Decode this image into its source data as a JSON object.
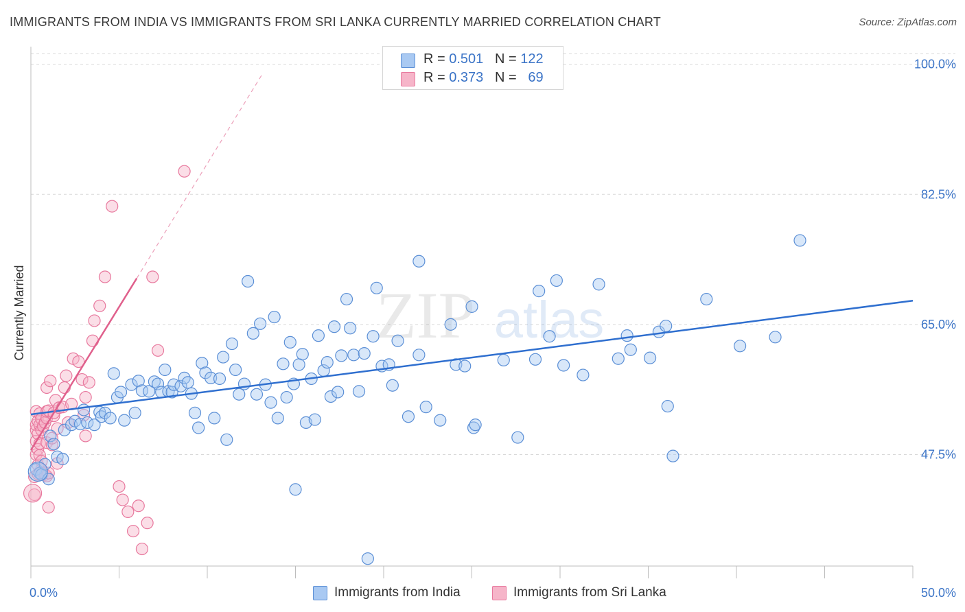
{
  "header": {
    "title": "IMMIGRANTS FROM INDIA VS IMMIGRANTS FROM SRI LANKA CURRENTLY MARRIED CORRELATION CHART",
    "source": "Source: ZipAtlas.com"
  },
  "legend": {
    "india": {
      "r_label": "R =",
      "r_value": "0.501",
      "n_label": "N =",
      "n_value": "122"
    },
    "srilanka": {
      "r_label": "R =",
      "r_value": "0.373",
      "n_label": "N =",
      "n_value": "69"
    }
  },
  "watermark": {
    "zip": "ZIP",
    "atlas": "atlas"
  },
  "colors": {
    "india_fill": "#a9c9f2",
    "india_stroke": "#5b8fd6",
    "india_line": "#2f6fcf",
    "srilanka_fill": "#f6b5c9",
    "srilanka_stroke": "#e8799e",
    "srilanka_line": "#e0608c",
    "axis_label": "#3b74c7",
    "grid": "#d9d9d9"
  },
  "chart_data": {
    "type": "scatter",
    "title": "IMMIGRANTS FROM INDIA VS IMMIGRANTS FROM SRI LANKA CURRENTLY MARRIED CORRELATION CHART",
    "xlabel": "",
    "ylabel": "Currently Married",
    "xlim": [
      0,
      50
    ],
    "ylim": [
      32.5,
      102
    ],
    "x_tick_labels": [
      "0.0%",
      "50.0%"
    ],
    "y_ticks": [
      47.5,
      65.0,
      82.5,
      100.0
    ],
    "y_tick_labels": [
      "47.5%",
      "65.0%",
      "82.5%",
      "100.0%"
    ],
    "grid": "horizontal dashed",
    "legend_position": "top-center",
    "series": [
      {
        "name": "Immigrants from India",
        "r": 0.501,
        "n": 122,
        "trend": {
          "x": [
            0,
            50
          ],
          "y": [
            52.9,
            68.2
          ]
        },
        "points": [
          [
            0.3,
            45.5
          ],
          [
            0.5,
            45.0
          ],
          [
            0.6,
            44.8
          ],
          [
            0.8,
            46.2
          ],
          [
            1.0,
            44.2
          ],
          [
            1.1,
            50.0
          ],
          [
            1.3,
            48.9
          ],
          [
            1.5,
            47.2
          ],
          [
            1.8,
            46.9
          ],
          [
            1.9,
            50.8
          ],
          [
            2.3,
            51.5
          ],
          [
            2.5,
            52.0
          ],
          [
            2.8,
            51.6
          ],
          [
            3.0,
            53.5
          ],
          [
            3.2,
            51.8
          ],
          [
            3.6,
            51.5
          ],
          [
            3.9,
            53.2
          ],
          [
            4.0,
            52.6
          ],
          [
            4.2,
            53.1
          ],
          [
            4.5,
            52.4
          ],
          [
            4.7,
            58.4
          ],
          [
            4.9,
            55.2
          ],
          [
            5.1,
            55.9
          ],
          [
            5.3,
            52.1
          ],
          [
            5.7,
            56.9
          ],
          [
            5.9,
            53.1
          ],
          [
            6.1,
            57.4
          ],
          [
            6.3,
            56.1
          ],
          [
            6.7,
            56.0
          ],
          [
            7.0,
            57.3
          ],
          [
            7.2,
            57.0
          ],
          [
            7.4,
            55.9
          ],
          [
            7.6,
            58.9
          ],
          [
            7.8,
            56.0
          ],
          [
            8.0,
            55.9
          ],
          [
            8.1,
            56.9
          ],
          [
            8.5,
            56.7
          ],
          [
            8.7,
            57.8
          ],
          [
            8.9,
            57.2
          ],
          [
            9.1,
            55.7
          ],
          [
            9.3,
            53.1
          ],
          [
            9.5,
            51.1
          ],
          [
            9.7,
            59.8
          ],
          [
            9.9,
            58.5
          ],
          [
            10.2,
            57.8
          ],
          [
            10.4,
            52.4
          ],
          [
            10.7,
            57.7
          ],
          [
            10.9,
            60.6
          ],
          [
            11.1,
            49.5
          ],
          [
            11.4,
            62.4
          ],
          [
            11.6,
            58.9
          ],
          [
            11.8,
            55.6
          ],
          [
            12.1,
            57.0
          ],
          [
            12.3,
            70.8
          ],
          [
            12.6,
            63.8
          ],
          [
            12.8,
            55.6
          ],
          [
            13.0,
            65.1
          ],
          [
            13.3,
            56.9
          ],
          [
            13.6,
            54.5
          ],
          [
            13.8,
            66.0
          ],
          [
            14.0,
            52.4
          ],
          [
            14.3,
            59.7
          ],
          [
            14.5,
            55.2
          ],
          [
            14.7,
            62.6
          ],
          [
            14.9,
            57.0
          ],
          [
            15.0,
            42.8
          ],
          [
            15.2,
            59.6
          ],
          [
            15.4,
            61.0
          ],
          [
            15.6,
            51.8
          ],
          [
            15.9,
            57.7
          ],
          [
            16.1,
            52.2
          ],
          [
            16.3,
            63.5
          ],
          [
            16.6,
            58.8
          ],
          [
            16.8,
            59.9
          ],
          [
            17.0,
            55.3
          ],
          [
            17.2,
            64.7
          ],
          [
            17.4,
            55.9
          ],
          [
            17.6,
            60.8
          ],
          [
            17.9,
            68.4
          ],
          [
            18.1,
            64.5
          ],
          [
            18.3,
            60.9
          ],
          [
            18.6,
            56.0
          ],
          [
            18.9,
            61.1
          ],
          [
            19.1,
            33.5
          ],
          [
            19.4,
            63.4
          ],
          [
            19.6,
            69.9
          ],
          [
            19.9,
            59.4
          ],
          [
            20.3,
            59.6
          ],
          [
            20.5,
            56.8
          ],
          [
            20.8,
            62.8
          ],
          [
            21.4,
            52.6
          ],
          [
            22.0,
            60.9
          ],
          [
            22.0,
            73.5
          ],
          [
            22.4,
            53.9
          ],
          [
            23.2,
            52.1
          ],
          [
            23.8,
            65.0
          ],
          [
            24.1,
            59.6
          ],
          [
            24.6,
            59.4
          ],
          [
            25.0,
            67.4
          ],
          [
            25.1,
            51.1
          ],
          [
            25.2,
            51.5
          ],
          [
            26.8,
            60.2
          ],
          [
            27.6,
            49.8
          ],
          [
            28.6,
            60.3
          ],
          [
            28.8,
            69.5
          ],
          [
            29.4,
            63.4
          ],
          [
            29.8,
            70.9
          ],
          [
            30.2,
            59.5
          ],
          [
            31.3,
            58.2
          ],
          [
            32.2,
            70.4
          ],
          [
            33.3,
            60.4
          ],
          [
            33.8,
            63.5
          ],
          [
            34.0,
            61.6
          ],
          [
            35.1,
            60.5
          ],
          [
            35.6,
            64.0
          ],
          [
            36.0,
            64.8
          ],
          [
            36.1,
            54.0
          ],
          [
            36.4,
            47.3
          ],
          [
            38.3,
            68.4
          ],
          [
            40.2,
            62.1
          ],
          [
            42.2,
            63.3
          ],
          [
            43.6,
            76.3
          ]
        ]
      },
      {
        "name": "Immigrants from Sri Lanka",
        "r": 0.373,
        "n": 69,
        "trend": {
          "x": [
            0,
            6.0
          ],
          "y": [
            48.1,
            71.2
          ]
        },
        "trend_extension": {
          "x": [
            6.0,
            13.1
          ],
          "y": [
            71.2,
            98.6
          ]
        },
        "points": [
          [
            0.2,
            44.5
          ],
          [
            0.2,
            42.1
          ],
          [
            0.3,
            47.5
          ],
          [
            0.3,
            49.3
          ],
          [
            0.3,
            50.8
          ],
          [
            0.3,
            51.5
          ],
          [
            0.3,
            53.3
          ],
          [
            0.4,
            44.9
          ],
          [
            0.4,
            46.1
          ],
          [
            0.4,
            48.2
          ],
          [
            0.4,
            50.3
          ],
          [
            0.4,
            52.0
          ],
          [
            0.5,
            45.0
          ],
          [
            0.5,
            47.4
          ],
          [
            0.5,
            49.0
          ],
          [
            0.5,
            51.5
          ],
          [
            0.5,
            53.0
          ],
          [
            0.6,
            45.5
          ],
          [
            0.6,
            46.6
          ],
          [
            0.6,
            50.8
          ],
          [
            0.6,
            52.3
          ],
          [
            0.7,
            45.0
          ],
          [
            0.7,
            51.3
          ],
          [
            0.8,
            44.8
          ],
          [
            0.8,
            51.8
          ],
          [
            0.9,
            44.6
          ],
          [
            0.9,
            49.1
          ],
          [
            0.9,
            52.4
          ],
          [
            0.9,
            53.3
          ],
          [
            0.9,
            56.5
          ],
          [
            1.0,
            40.4
          ],
          [
            1.0,
            45.0
          ],
          [
            1.0,
            53.4
          ],
          [
            1.1,
            57.4
          ],
          [
            1.2,
            48.8
          ],
          [
            1.2,
            49.7
          ],
          [
            1.3,
            52.7
          ],
          [
            1.3,
            53.1
          ],
          [
            1.4,
            54.8
          ],
          [
            1.5,
            46.3
          ],
          [
            1.5,
            51.0
          ],
          [
            1.6,
            53.8
          ],
          [
            1.8,
            53.9
          ],
          [
            1.9,
            56.5
          ],
          [
            2.0,
            58.1
          ],
          [
            2.1,
            51.8
          ],
          [
            2.3,
            54.3
          ],
          [
            2.4,
            60.4
          ],
          [
            2.7,
            60.0
          ],
          [
            2.9,
            57.6
          ],
          [
            3.0,
            52.8
          ],
          [
            3.1,
            50.0
          ],
          [
            3.1,
            55.2
          ],
          [
            3.3,
            57.2
          ],
          [
            3.5,
            62.8
          ],
          [
            3.6,
            65.5
          ],
          [
            3.9,
            67.5
          ],
          [
            4.2,
            71.4
          ],
          [
            4.6,
            80.9
          ],
          [
            5.0,
            43.2
          ],
          [
            5.2,
            41.4
          ],
          [
            5.5,
            39.8
          ],
          [
            5.8,
            37.2
          ],
          [
            6.1,
            40.6
          ],
          [
            6.3,
            34.8
          ],
          [
            6.6,
            38.3
          ],
          [
            6.9,
            71.4
          ],
          [
            7.2,
            61.5
          ],
          [
            8.7,
            85.6
          ]
        ]
      }
    ]
  },
  "bottom_legend": {
    "india_label": "Immigrants from India",
    "srilanka_label": "Immigrants from Sri Lanka"
  }
}
